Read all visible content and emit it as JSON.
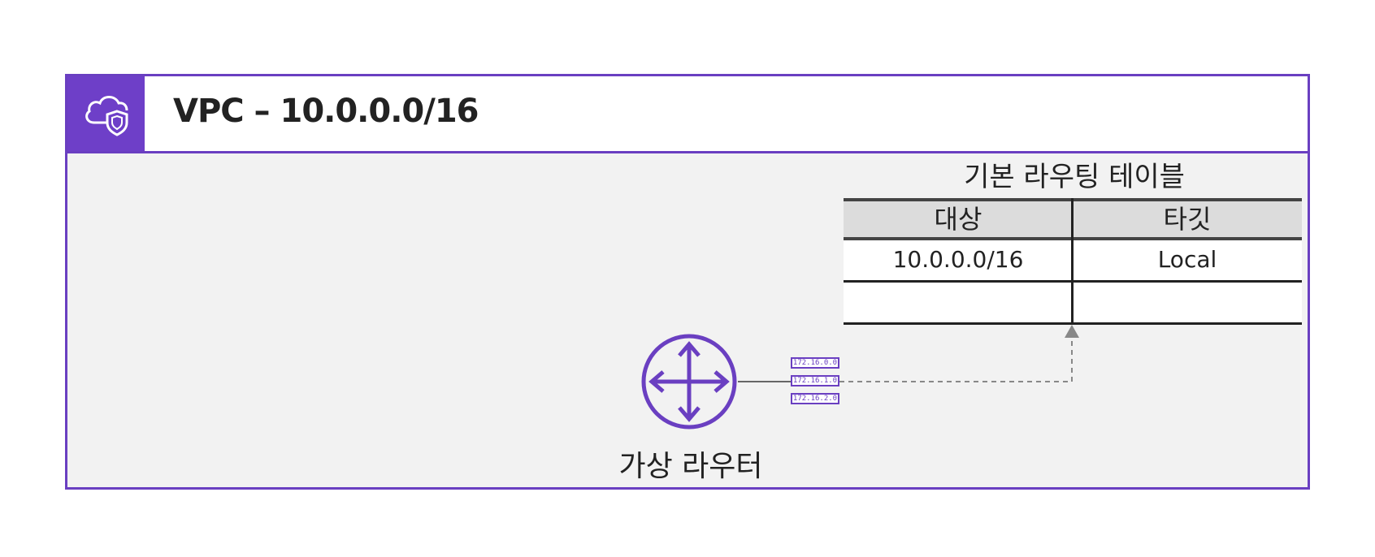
{
  "vpc": {
    "title": "VPC – 10.0.0.0/16",
    "icon": "vpc-cloud-shield-icon",
    "border_color": "#6a3fc1",
    "header_icon_bg": "#6e3fc8"
  },
  "route_table": {
    "caption": "기본 라우팅 테이블",
    "headers": [
      "대상",
      "타깃"
    ],
    "rows": [
      [
        "10.0.0.0/16",
        "Local"
      ],
      [
        "",
        ""
      ]
    ]
  },
  "router": {
    "label": "가상 라우터",
    "icon": "router-icon",
    "subnets": [
      "172.16.0.0",
      "172.16.1.0",
      "172.16.2.0"
    ]
  }
}
